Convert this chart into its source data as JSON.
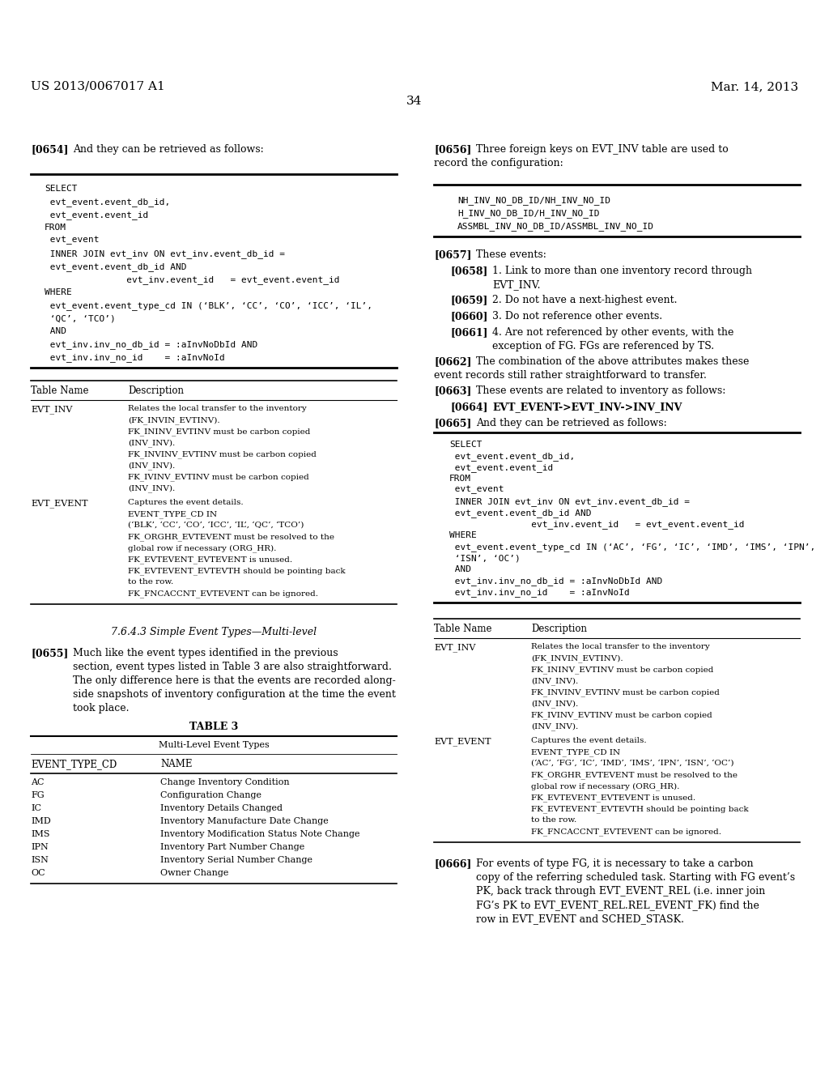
{
  "bg_color": "#ffffff",
  "header_left": "US 2013/0067017 A1",
  "header_right": "Mar. 14, 2013",
  "page_number": "34",
  "sql_block_1": [
    "SELECT",
    " evt_event.event_db_id,",
    " evt_event.event_id",
    "FROM",
    " evt_event",
    " INNER JOIN evt_inv ON evt_inv.event_db_id =",
    " evt_event.event_db_id AND",
    "               evt_inv.event_id   = evt_event.event_id",
    "WHERE",
    " evt_event.event_type_cd IN (‘BLK’, ‘CC’, ‘CO’, ‘ICC’, ‘IL’,",
    " ‘QC’, ‘TCO’)",
    " AND",
    " evt_inv.inv_no_db_id = :aInvNoDbId AND",
    " evt_inv.inv_no_id    = :aInvNoId"
  ],
  "fk_block": [
    "NH_INV_NO_DB_ID/NH_INV_NO_ID",
    "H_INV_NO_DB_ID/H_INV_NO_ID",
    "ASSMBL_INV_NO_DB_ID/ASSMBL_INV_NO_ID"
  ],
  "sql_block_2": [
    "SELECT",
    " evt_event.event_db_id,",
    " evt_event.event_id",
    "FROM",
    " evt_event",
    " INNER JOIN evt_inv ON evt_inv.event_db_id =",
    " evt_event.event_db_id AND",
    "               evt_inv.event_id   = evt_event.event_id",
    "WHERE",
    " evt_event.event_type_cd IN (‘AC’, ‘FG’, ‘IC’, ‘IMD’, ‘IMS’, ‘IPN’,",
    " ‘ISN’, ‘OC’)",
    " AND",
    " evt_inv.inv_no_db_id = :aInvNoDbId AND",
    " evt_inv.inv_no_id    = :aInvNoId"
  ],
  "table3_rows": [
    [
      "AC",
      "Change Inventory Condition"
    ],
    [
      "FG",
      "Configuration Change"
    ],
    [
      "IC",
      "Inventory Details Changed"
    ],
    [
      "IMD",
      "Inventory Manufacture Date Change"
    ],
    [
      "IMS",
      "Inventory Modification Status Note Change"
    ],
    [
      "IPN",
      "Inventory Part Number Change"
    ],
    [
      "ISN",
      "Inventory Serial Number Change"
    ],
    [
      "OC",
      "Owner Change"
    ]
  ]
}
